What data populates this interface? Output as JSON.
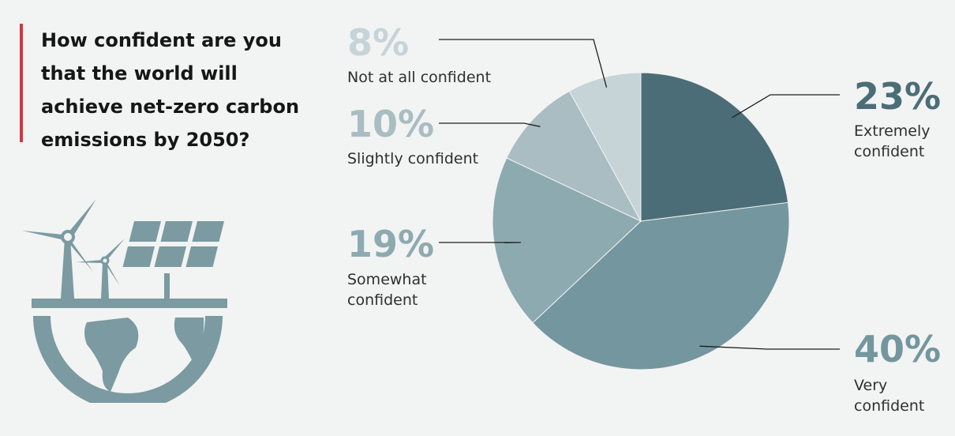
{
  "title": "How confident are you that the world will achieve net-zero carbon emissions by 2050?",
  "illustration": {
    "icon": "renewable-energy-globe-icon",
    "color": "#7b9aa1"
  },
  "colors": {
    "accent": "#d3363f"
  },
  "chart_data": {
    "type": "pie",
    "title": "How confident are you that the world will achieve net-zero carbon emissions by 2050?",
    "start": "12 o'clock",
    "direction": "clockwise",
    "slices": [
      {
        "label": "Extremely confident",
        "value": 23,
        "display": "23%",
        "color": "#4b6d77",
        "label_color": "#4b6d77",
        "side": "right"
      },
      {
        "label": "Very confident",
        "value": 40,
        "display": "40%",
        "color": "#74969e",
        "label_color": "#74969e",
        "side": "right"
      },
      {
        "label": "Somewhat confident",
        "value": 19,
        "display": "19%",
        "color": "#8eaab1",
        "label_color": "#8eaab1",
        "side": "left"
      },
      {
        "label": "Slightly confident",
        "value": 10,
        "display": "10%",
        "color": "#a9bdc2",
        "label_color": "#a9bdc2",
        "side": "left"
      },
      {
        "label": "Not at all confident",
        "value": 8,
        "display": "8%",
        "color": "#c6d4d8",
        "label_color": "#c6d4d8",
        "side": "left"
      }
    ]
  }
}
